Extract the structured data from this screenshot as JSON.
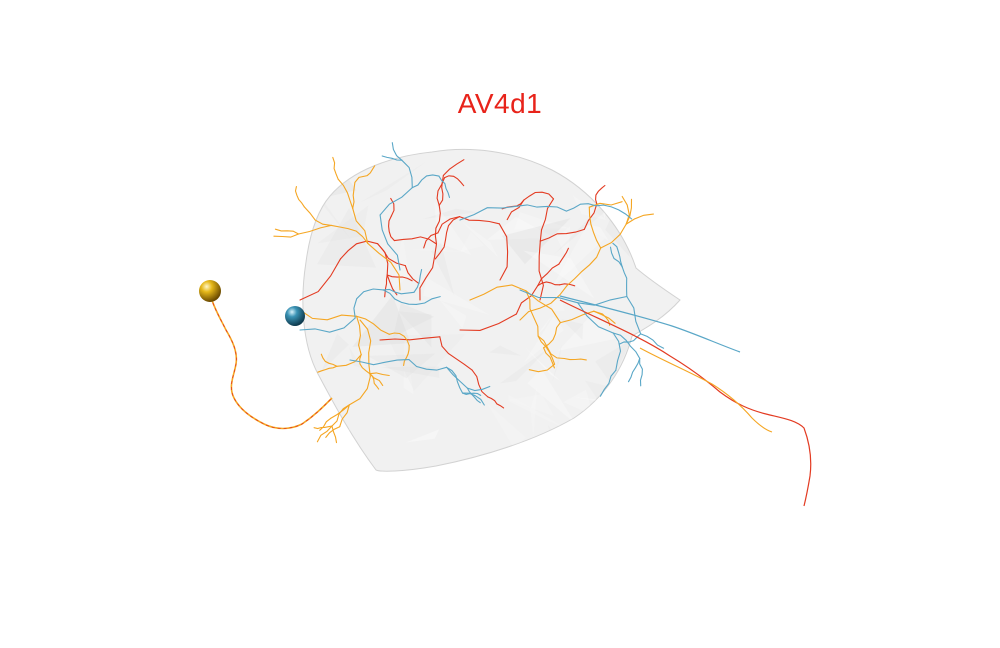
{
  "title": {
    "text": "AV4d1",
    "color": "#e8231a"
  },
  "colors": {
    "background": "#ffffff",
    "neuropil_fill": "#e9e9e9",
    "neuropil_edge": "#c9c9c9",
    "arbor_red": "#e33b22",
    "arbor_orange": "#f5a623",
    "arbor_blue": "#5aa7c7",
    "soma_gold": "#d9a90c",
    "soma_teal": "#2f7f9e"
  },
  "scene": {
    "neuropil": "translucent-mesh",
    "somas": [
      {
        "name": "soma-gold",
        "color_key": "soma_gold"
      },
      {
        "name": "soma-teal",
        "color_key": "soma_teal"
      }
    ],
    "neurons": [
      {
        "name": "neuron-red",
        "color_key": "arbor_red"
      },
      {
        "name": "neuron-orange",
        "color_key": "arbor_orange"
      },
      {
        "name": "neuron-blue",
        "color_key": "arbor_blue"
      }
    ]
  }
}
